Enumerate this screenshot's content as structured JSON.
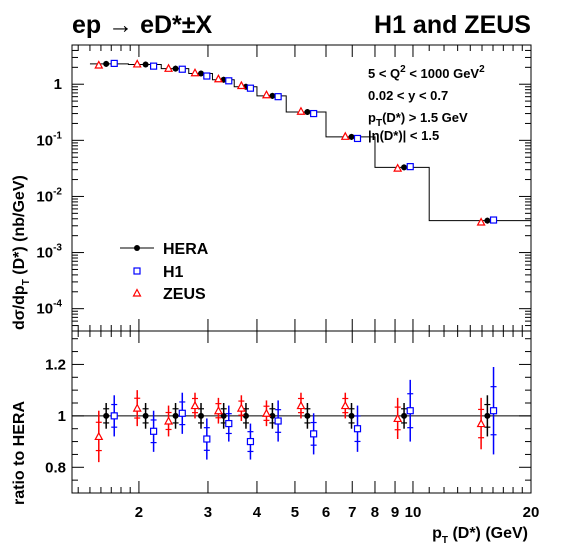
{
  "chart_data": [
    {
      "type": "line",
      "panel": "top",
      "title_left": "ep → eD*±X",
      "title_right": "H1 and ZEUS",
      "ylabel": "dσ/dp_T (D*) (nb/GeV)",
      "yscale": "log",
      "ylim": [
        4e-05,
        5
      ],
      "y_ticks": [
        {
          "value": 1,
          "mant": "",
          "exp": "",
          "plain": "1"
        },
        {
          "value": 0.1,
          "mant": "10",
          "exp": "-1",
          "plain": ""
        },
        {
          "value": 0.01,
          "mant": "10",
          "exp": "-2",
          "plain": ""
        },
        {
          "value": 0.001,
          "mant": "10",
          "exp": "-3",
          "plain": ""
        },
        {
          "value": 0.0001,
          "mant": "10",
          "exp": "-4",
          "plain": ""
        }
      ],
      "annotations": [
        "5 < Q² < 1000 GeV²",
        "0.02 < y < 0.7",
        "p_T(D*) > 1.5 GeV",
        "|η(D*)| < 1.5"
      ],
      "bin_edges": [
        1.5,
        1.88,
        2.28,
        2.68,
        3.08,
        3.5,
        4.0,
        4.75,
        6.0,
        8.0,
        11.0,
        20.0
      ],
      "series": [
        {
          "name": "HERA",
          "color": "#000000",
          "marker": "circle",
          "x": [
            1.65,
            2.08,
            2.48,
            2.88,
            3.29,
            3.75,
            4.38,
            5.38,
            6.97,
            9.49,
            15.48
          ],
          "y": [
            2.3,
            2.25,
            1.9,
            1.55,
            1.2,
            0.9,
            0.62,
            0.32,
            0.115,
            0.033,
            0.0037
          ]
        },
        {
          "name": "H1",
          "color": "#0000ff",
          "marker": "square",
          "x": [
            1.73,
            2.18,
            2.58,
            2.98,
            3.39,
            3.85,
            4.53,
            5.58,
            7.22,
            9.84,
            16.05
          ],
          "y": [
            2.35,
            2.1,
            1.85,
            1.4,
            1.15,
            0.85,
            0.6,
            0.3,
            0.108,
            0.034,
            0.0038
          ]
        },
        {
          "name": "ZEUS",
          "color": "#ff0000",
          "marker": "triangle",
          "x": [
            1.58,
            1.98,
            2.38,
            2.78,
            3.19,
            3.65,
            4.23,
            5.18,
            6.72,
            9.14,
            14.92
          ],
          "y": [
            2.2,
            2.3,
            1.92,
            1.6,
            1.25,
            0.95,
            0.65,
            0.33,
            0.118,
            0.032,
            0.0035
          ]
        }
      ],
      "legend": {
        "placement": "lower-left",
        "entries": [
          "HERA",
          "H1",
          "ZEUS"
        ]
      }
    },
    {
      "type": "scatter",
      "panel": "bottom",
      "xlabel": "p_T (D*) (GeV)",
      "xscale": "log",
      "xlim": [
        1.35,
        20
      ],
      "x_tick_labels": [
        {
          "value": 2,
          "label": "2"
        },
        {
          "value": 3,
          "label": "3"
        },
        {
          "value": 4,
          "label": "4"
        },
        {
          "value": 5,
          "label": "5"
        },
        {
          "value": 6,
          "label": "6"
        },
        {
          "value": 7,
          "label": "7"
        },
        {
          "value": 8,
          "label": "8"
        },
        {
          "value": 9,
          "label": "9"
        },
        {
          "value": 10,
          "label": "10"
        },
        {
          "value": 20,
          "label": "20"
        }
      ],
      "ylabel": "ratio to HERA",
      "ylim": [
        0.7,
        1.33
      ],
      "y_tick_labels": [
        {
          "value": 0.8,
          "label": "0.8"
        },
        {
          "value": 1,
          "label": "1"
        },
        {
          "value": 1.2,
          "label": "1.2"
        }
      ],
      "reference_line": 1,
      "series": [
        {
          "name": "HERA",
          "color": "#000000",
          "marker": "circle",
          "x": [
            1.65,
            2.08,
            2.48,
            2.88,
            3.29,
            3.75,
            4.38,
            5.38,
            6.97,
            9.49,
            15.48
          ],
          "ratio": [
            1,
            1,
            1,
            1,
            1,
            1,
            1,
            1,
            1,
            1,
            1
          ],
          "err": [
            0.05,
            0.05,
            0.05,
            0.05,
            0.05,
            0.05,
            0.05,
            0.05,
            0.05,
            0.05,
            0.08
          ]
        },
        {
          "name": "H1",
          "color": "#0000ff",
          "marker": "square",
          "x": [
            1.73,
            2.18,
            2.58,
            2.98,
            3.39,
            3.85,
            4.53,
            5.58,
            7.22,
            9.84,
            16.05
          ],
          "ratio": [
            1.0,
            0.94,
            1.01,
            0.91,
            0.97,
            0.9,
            0.98,
            0.93,
            0.95,
            1.02,
            1.02
          ],
          "err": [
            0.08,
            0.08,
            0.08,
            0.08,
            0.07,
            0.07,
            0.08,
            0.08,
            0.09,
            0.12,
            0.17
          ]
        },
        {
          "name": "ZEUS",
          "color": "#ff0000",
          "marker": "triangle",
          "x": [
            1.58,
            1.98,
            2.38,
            2.78,
            3.19,
            3.65,
            4.23,
            5.18,
            6.72,
            9.14,
            14.92
          ],
          "ratio": [
            0.92,
            1.03,
            0.98,
            1.04,
            1.02,
            1.03,
            1.01,
            1.04,
            1.04,
            0.99,
            0.97
          ],
          "err": [
            0.1,
            0.07,
            0.06,
            0.05,
            0.05,
            0.05,
            0.05,
            0.05,
            0.05,
            0.08,
            0.1
          ]
        }
      ]
    }
  ]
}
